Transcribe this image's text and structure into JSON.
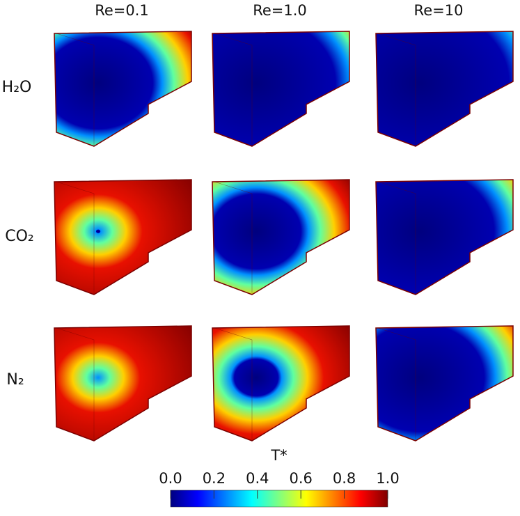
{
  "columns": [
    "Re=0.1",
    "Re=1.0",
    "Re=10"
  ],
  "rows": [
    "H₂O",
    "CO₂",
    "N₂"
  ],
  "colorbar": {
    "title": "T*",
    "lim": [
      0,
      1
    ],
    "ticks": [
      {
        "value": 0,
        "label": "0.0"
      },
      {
        "value": 0.2,
        "label": "0.2"
      },
      {
        "value": 0.4,
        "label": "0.4"
      },
      {
        "value": 0.6,
        "label": "0.6"
      },
      {
        "value": 0.8,
        "label": "0.8"
      },
      {
        "value": 1,
        "label": "1.0"
      }
    ]
  }
}
